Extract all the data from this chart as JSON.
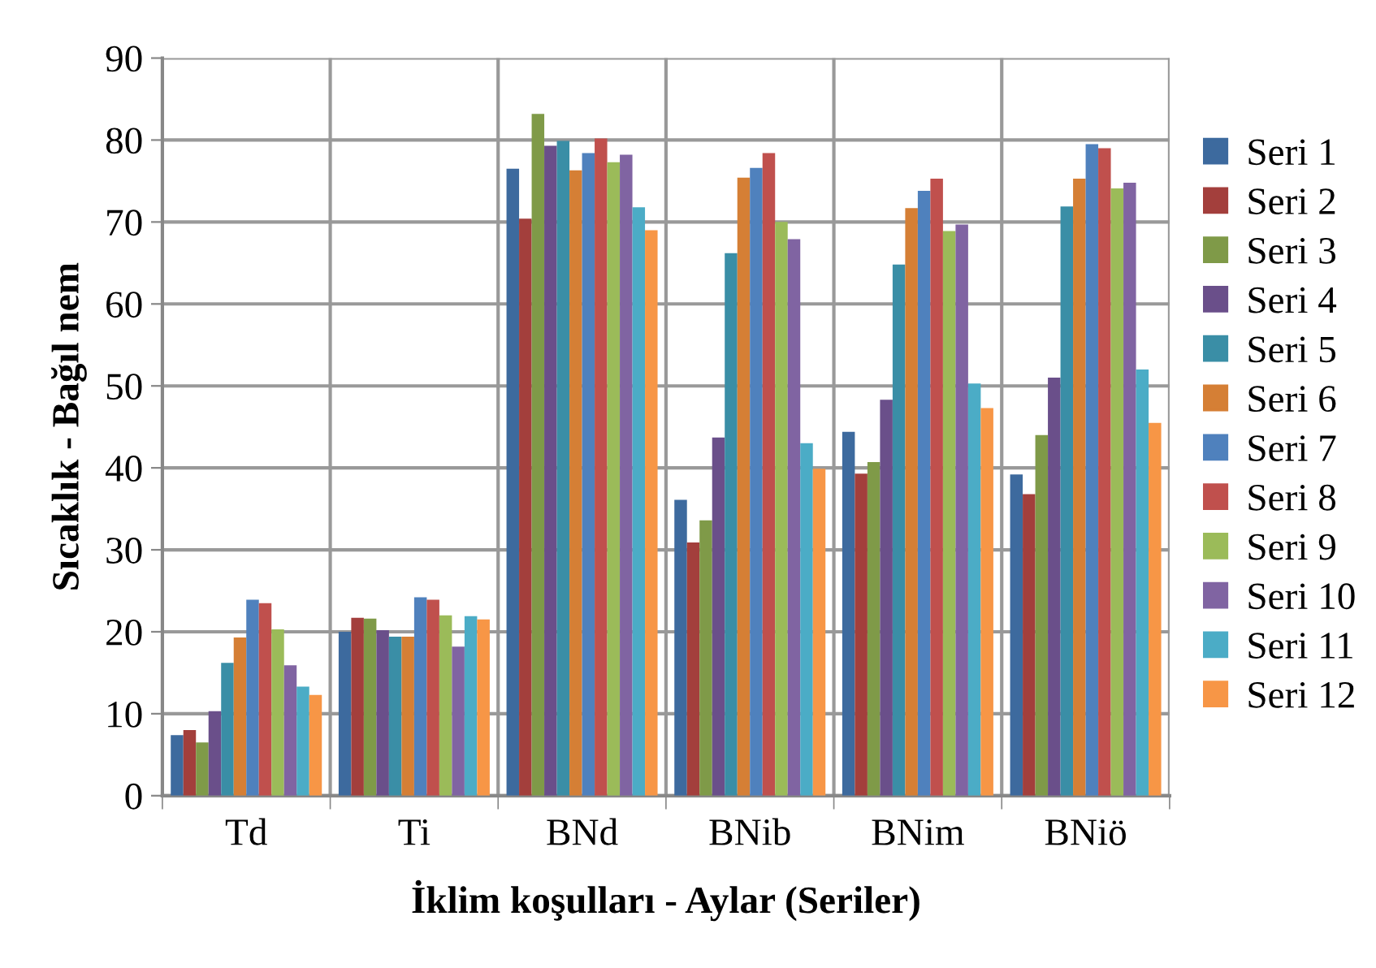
{
  "chart_data": {
    "type": "bar",
    "xlabel": "İklim koşulları - Aylar (Seriler)",
    "ylabel": "Sıcaklık - Bağıl nem",
    "categories": [
      "Td",
      "Ti",
      "BNd",
      "BNib",
      "BNim",
      "BNiö"
    ],
    "ylim": [
      0,
      90
    ],
    "yticks": [
      0,
      10,
      20,
      30,
      40,
      50,
      60,
      70,
      80,
      90
    ],
    "grid": true,
    "legend": "right",
    "series": [
      {
        "name": "Seri 1",
        "color": "#3d6a9e",
        "values": [
          7.4,
          20,
          76.5,
          36.1,
          44.4,
          39.2
        ]
      },
      {
        "name": "Seri 2",
        "color": "#a33f3c",
        "values": [
          8,
          21.7,
          70.4,
          30.9,
          39.3,
          36.8
        ]
      },
      {
        "name": "Seri 3",
        "color": "#7f9a48",
        "values": [
          6.5,
          21.6,
          83.2,
          33.6,
          40.7,
          44
        ]
      },
      {
        "name": "Seri 4",
        "color": "#6a4f8a",
        "values": [
          10.3,
          20.2,
          79.3,
          43.7,
          48.3,
          51
        ]
      },
      {
        "name": "Seri 5",
        "color": "#3a8ea6",
        "values": [
          16.2,
          19.4,
          79.9,
          66.2,
          64.8,
          71.9
        ]
      },
      {
        "name": "Seri 6",
        "color": "#d57f35",
        "values": [
          19.3,
          19.4,
          76.3,
          75.4,
          71.7,
          75.3
        ]
      },
      {
        "name": "Seri 7",
        "color": "#4f81bd",
        "values": [
          23.9,
          24.2,
          78.4,
          76.6,
          73.8,
          79.5
        ]
      },
      {
        "name": "Seri 8",
        "color": "#c0504d",
        "values": [
          23.5,
          23.9,
          80.2,
          78.4,
          75.3,
          79
        ]
      },
      {
        "name": "Seri 9",
        "color": "#9bbb59",
        "values": [
          20.3,
          22,
          77.3,
          70,
          68.9,
          74.1
        ]
      },
      {
        "name": "Seri 10",
        "color": "#8064a2",
        "values": [
          15.9,
          18.2,
          78.2,
          67.9,
          69.7,
          74.8
        ]
      },
      {
        "name": "Seri 11",
        "color": "#4bacc6",
        "values": [
          13.3,
          21.9,
          71.8,
          43,
          50.3,
          52
        ]
      },
      {
        "name": "Seri 12",
        "color": "#f79646",
        "values": [
          12.3,
          21.5,
          69,
          39.9,
          47.3,
          45.5
        ]
      }
    ]
  }
}
